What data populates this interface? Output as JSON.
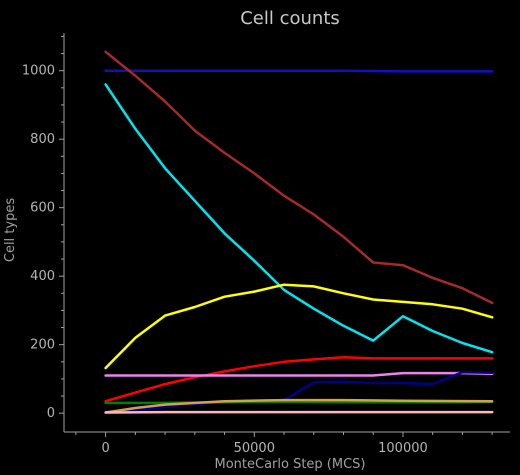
{
  "chart_data": {
    "type": "line",
    "title": "Cell counts",
    "xlabel": "MonteCarlo Step (MCS)",
    "ylabel": "Cell types",
    "xlim": [
      -14000,
      136000
    ],
    "ylim": [
      -55,
      1110
    ],
    "xticks": [
      0,
      50000,
      100000
    ],
    "xtick_labels": [
      "0",
      "50000",
      "100000"
    ],
    "yticks": [
      0,
      200,
      400,
      600,
      800,
      1000
    ],
    "ytick_labels": [
      "0",
      "200",
      "400",
      "600",
      "800",
      "1000"
    ],
    "grid": false,
    "legend": "none",
    "colors": {
      "background": "#000000",
      "axis": "#a0a0a0",
      "tick_text": "#b4b4b4",
      "title": "#c8c8c8"
    },
    "series": [
      {
        "color": "#1010c8",
        "x": [
          0,
          20000,
          40000,
          60000,
          80000,
          100000,
          120000,
          130000
        ],
        "y": [
          1000,
          1000,
          1000,
          1000,
          1000,
          998,
          998,
          998
        ]
      },
      {
        "color": "#a52a2a",
        "x": [
          0,
          10000,
          20000,
          30000,
          40000,
          50000,
          60000,
          70000,
          80000,
          90000,
          100000,
          110000,
          120000,
          130000
        ],
        "y": [
          1055,
          985,
          910,
          825,
          760,
          700,
          635,
          580,
          515,
          440,
          432,
          395,
          365,
          322
        ]
      },
      {
        "color": "#00e5ee",
        "x": [
          0,
          10000,
          20000,
          30000,
          40000,
          50000,
          60000,
          70000,
          80000,
          90000,
          100000,
          110000,
          120000,
          130000
        ],
        "y": [
          960,
          830,
          715,
          620,
          525,
          445,
          360,
          305,
          255,
          212,
          283,
          240,
          205,
          178
        ]
      },
      {
        "color": "#ffff00",
        "x": [
          0,
          10000,
          20000,
          30000,
          40000,
          50000,
          60000,
          70000,
          80000,
          90000,
          100000,
          110000,
          120000,
          130000
        ],
        "y": [
          132,
          220,
          285,
          310,
          340,
          355,
          375,
          370,
          350,
          332,
          325,
          318,
          305,
          280
        ]
      },
      {
        "color": "#ff0000",
        "x": [
          0,
          10000,
          20000,
          30000,
          40000,
          50000,
          60000,
          70000,
          80000,
          90000,
          100000,
          110000,
          120000,
          130000
        ],
        "y": [
          35,
          60,
          85,
          105,
          122,
          137,
          150,
          157,
          163,
          160,
          160,
          160,
          160,
          160
        ]
      },
      {
        "color": "#ee82ee",
        "x": [
          0,
          20000,
          40000,
          60000,
          80000,
          90000,
          100000,
          110000,
          120000,
          130000
        ],
        "y": [
          110,
          110,
          110,
          110,
          110,
          110,
          117,
          117,
          117,
          115
        ]
      },
      {
        "color": "#00008b",
        "x": [
          0,
          20000,
          40000,
          50000,
          60000,
          70000,
          80000,
          90000,
          100000,
          110000,
          120000,
          130000
        ],
        "y": [
          0,
          18,
          35,
          35,
          38,
          90,
          92,
          88,
          88,
          85,
          120,
          118
        ]
      },
      {
        "color": "#008000",
        "x": [
          0,
          20000,
          40000,
          60000,
          80000,
          100000,
          120000,
          130000
        ],
        "y": [
          30,
          30,
          32,
          33,
          32,
          32,
          32,
          33
        ]
      },
      {
        "color": "#d2a050",
        "x": [
          0,
          10000,
          20000,
          40000,
          60000,
          80000,
          100000,
          130000
        ],
        "y": [
          2,
          15,
          25,
          35,
          38,
          38,
          36,
          35
        ]
      },
      {
        "color": "#ffb6c1",
        "x": [
          0,
          20000,
          40000,
          60000,
          80000,
          100000,
          120000,
          130000
        ],
        "y": [
          2,
          3,
          3,
          3,
          3,
          3,
          3,
          3
        ]
      }
    ]
  }
}
